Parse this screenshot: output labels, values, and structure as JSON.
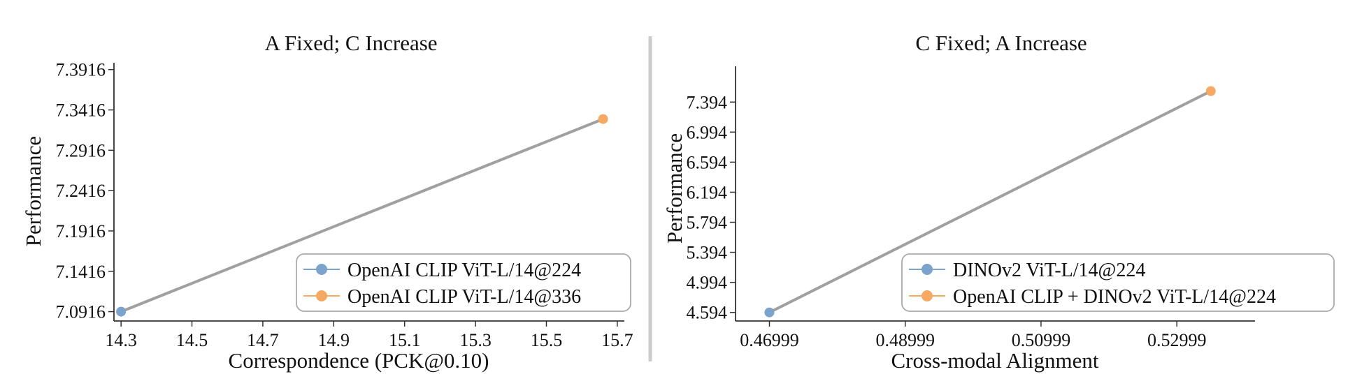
{
  "chart_data": [
    {
      "type": "line",
      "title": "A Fixed; C Increase",
      "xlabel": "Correspondence (PCK@0.10)",
      "ylabel": "Performance",
      "xlim": [
        14.28,
        15.72
      ],
      "ylim": [
        7.08,
        7.4
      ],
      "xticks": [
        14.3,
        14.5,
        14.7,
        14.9,
        15.1,
        15.3,
        15.5,
        15.7
      ],
      "xtick_labels": [
        "14.3",
        "14.5",
        "14.7",
        "14.9",
        "15.1",
        "15.3",
        "15.5",
        "15.7"
      ],
      "yticks": [
        7.0916,
        7.1416,
        7.1916,
        7.2416,
        7.2916,
        7.3416,
        7.3916
      ],
      "ytick_labels": [
        "7.0916",
        "7.1416",
        "7.1916",
        "7.2416",
        "7.2916",
        "7.3416",
        "7.3916"
      ],
      "line_color": "#a0a0a0",
      "points": [
        {
          "name": "OpenAI CLIP ViT-L/14@224",
          "x": 14.3,
          "y": 7.0916,
          "color": "#7ba3cc"
        },
        {
          "name": "OpenAI CLIP ViT-L/14@336",
          "x": 15.66,
          "y": 7.3303,
          "color": "#f5a962"
        }
      ],
      "legend_position": "bottom-right"
    },
    {
      "type": "line",
      "title": "C Fixed; A Increase",
      "xlabel": "Cross-modal Alignment",
      "ylabel": "Performance",
      "xlim": [
        0.465,
        0.5415
      ],
      "ylim": [
        4.48,
        7.87
      ],
      "xticks": [
        0.46999,
        0.48999,
        0.50999,
        0.52999
      ],
      "xtick_labels": [
        "0.46999",
        "0.48999",
        "0.50999",
        "0.52999"
      ],
      "yticks": [
        4.594,
        4.994,
        5.394,
        5.794,
        6.194,
        6.594,
        6.994,
        7.394
      ],
      "ytick_labels": [
        "4.594",
        "4.994",
        "5.394",
        "5.794",
        "6.194",
        "6.594",
        "6.994",
        "7.394"
      ],
      "line_color": "#a0a0a0",
      "points": [
        {
          "name": "DINOv2 ViT-L/14@224",
          "x": 0.46999,
          "y": 4.594,
          "color": "#7ba3cc"
        },
        {
          "name": "OpenAI CLIP + DINOv2 ViT-L/14@224",
          "x": 0.53499,
          "y": 7.54,
          "color": "#f5a962"
        }
      ],
      "legend_position": "bottom-right"
    }
  ]
}
